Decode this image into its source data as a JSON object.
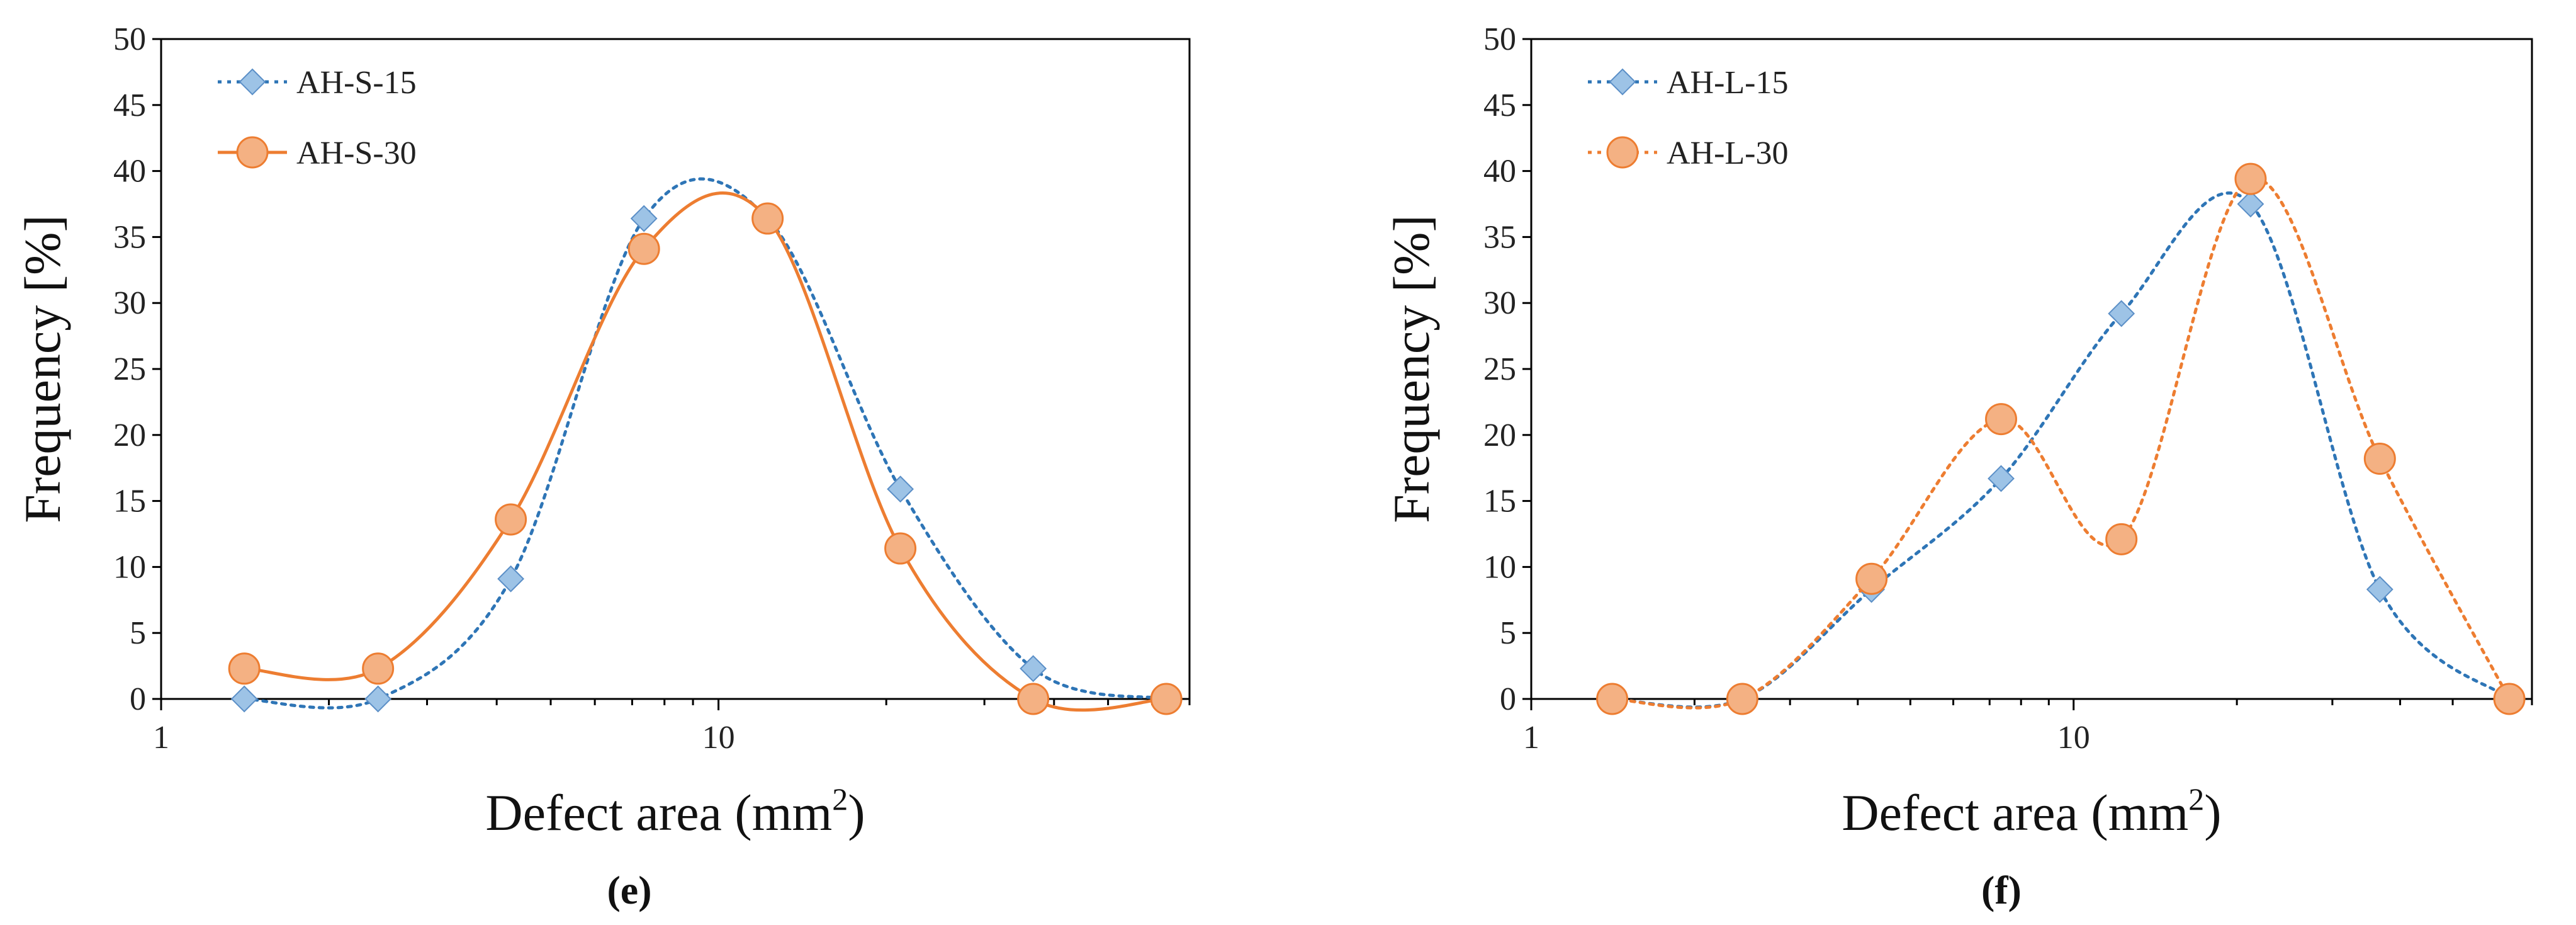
{
  "chart_data": [
    {
      "type": "line",
      "panel_label": "(e)",
      "xlabel": "Defect area (mm",
      "xlabel_sup": "2",
      "xlabel_close": ")",
      "ylabel": "Frequency [%]",
      "xscale": "log",
      "xlim": [
        1,
        70
      ],
      "ylim": [
        0,
        50
      ],
      "yticks": [
        0,
        5,
        10,
        15,
        20,
        25,
        30,
        35,
        40,
        45,
        50
      ],
      "xticks": [
        1,
        10
      ],
      "legend_position": "top-left",
      "series": [
        {
          "name": "AH-S-15",
          "color": "#2e75b6",
          "marker": "diamond",
          "marker_fill": "#9dc3e6",
          "line_style": "dotted",
          "x": [
            1.41,
            2.45,
            4.24,
            7.35,
            12.25,
            21.2,
            36.7,
            63.6
          ],
          "y": [
            0,
            0,
            9.1,
            36.4,
            36.4,
            15.9,
            2.3,
            0
          ]
        },
        {
          "name": "AH-S-30",
          "color": "#ed7d31",
          "marker": "circle",
          "marker_fill": "#f4b183",
          "line_style": "solid",
          "x": [
            1.41,
            2.45,
            4.24,
            7.35,
            12.25,
            21.2,
            36.7,
            63.6
          ],
          "y": [
            2.3,
            2.3,
            13.6,
            34.1,
            36.4,
            11.4,
            0,
            0
          ]
        }
      ]
    },
    {
      "type": "line",
      "panel_label": "(f)",
      "xlabel": "Defect area (mm",
      "xlabel_sup": "2",
      "xlabel_close": ")",
      "ylabel": "Frequency [%]",
      "xscale": "log",
      "xlim": [
        1,
        70
      ],
      "ylim": [
        0,
        50
      ],
      "yticks": [
        0,
        5,
        10,
        15,
        20,
        25,
        30,
        35,
        40,
        45,
        50
      ],
      "xticks": [
        1,
        10
      ],
      "legend_position": "top-left",
      "series": [
        {
          "name": "AH-L-15",
          "color": "#2e75b6",
          "marker": "diamond",
          "marker_fill": "#9dc3e6",
          "line_style": "dotted",
          "x": [
            1.41,
            2.45,
            4.24,
            7.35,
            12.25,
            21.2,
            36.7,
            63.6
          ],
          "y": [
            0,
            0,
            8.3,
            16.7,
            29.2,
            37.5,
            8.3,
            0
          ]
        },
        {
          "name": "AH-L-30",
          "color": "#ed7d31",
          "marker": "circle",
          "marker_fill": "#f4b183",
          "line_style": "dotted",
          "x": [
            1.41,
            2.45,
            4.24,
            7.35,
            12.25,
            21.2,
            36.7,
            63.6
          ],
          "y": [
            0,
            0,
            9.1,
            21.2,
            12.1,
            39.4,
            18.2,
            0
          ]
        }
      ]
    }
  ]
}
